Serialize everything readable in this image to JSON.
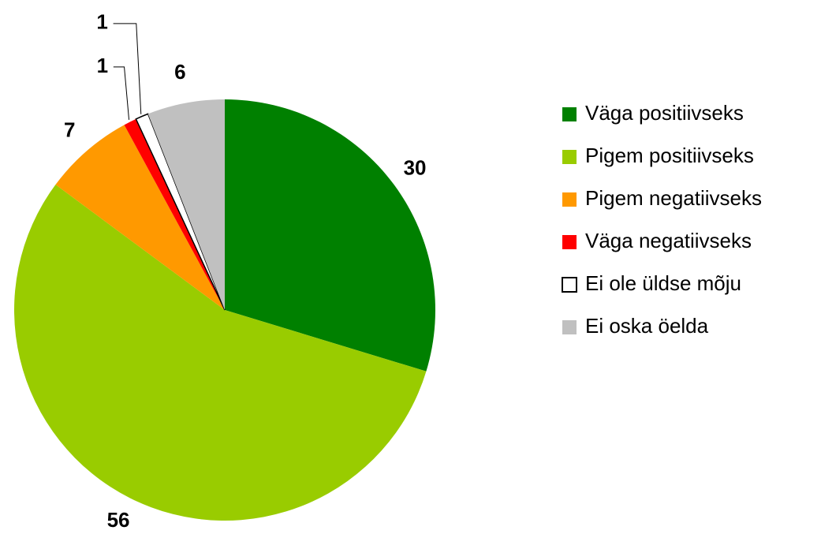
{
  "chart_data": {
    "type": "pie",
    "categories": [
      "Väga positiivseks",
      "Pigem positiivseks",
      "Pigem negatiivseks",
      "Väga negatiivseks",
      "Ei ole üldse mõju",
      "Ei oska öelda"
    ],
    "values": [
      30,
      56,
      7,
      1,
      1,
      6
    ],
    "colors": [
      "#008000",
      "#99cc00",
      "#ff9900",
      "#ff0000",
      "#ffffff",
      "#c0c0c0"
    ],
    "legend": "right"
  }
}
